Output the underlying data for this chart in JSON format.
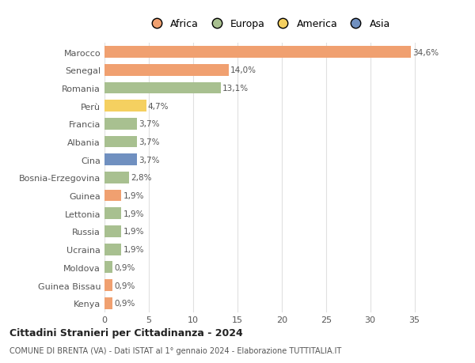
{
  "categories": [
    "Kenya",
    "Guinea Bissau",
    "Moldova",
    "Ucraina",
    "Russia",
    "Lettonia",
    "Guinea",
    "Bosnia-Erzegovina",
    "Cina",
    "Albania",
    "Francia",
    "Perù",
    "Romania",
    "Senegal",
    "Marocco"
  ],
  "values": [
    0.9,
    0.9,
    0.9,
    1.9,
    1.9,
    1.9,
    1.9,
    2.8,
    3.7,
    3.7,
    3.7,
    4.7,
    13.1,
    14.0,
    34.6
  ],
  "labels": [
    "0,9%",
    "0,9%",
    "0,9%",
    "1,9%",
    "1,9%",
    "1,9%",
    "1,9%",
    "2,8%",
    "3,7%",
    "3,7%",
    "3,7%",
    "4,7%",
    "13,1%",
    "14,0%",
    "34,6%"
  ],
  "colors": [
    "#F0A070",
    "#F0A070",
    "#A8C090",
    "#A8C090",
    "#A8C090",
    "#A8C090",
    "#F0A070",
    "#A8C090",
    "#7090C0",
    "#A8C090",
    "#A8C090",
    "#F5D060",
    "#A8C090",
    "#F0A070",
    "#F0A070"
  ],
  "legend_names": [
    "Africa",
    "Europa",
    "America",
    "Asia"
  ],
  "legend_colors": [
    "#F0A070",
    "#A8C090",
    "#F5D060",
    "#7090C0"
  ],
  "title": "Cittadini Stranieri per Cittadinanza - 2024",
  "subtitle": "COMUNE DI BRENTA (VA) - Dati ISTAT al 1° gennaio 2024 - Elaborazione TUTTITALIA.IT",
  "xlim": [
    0,
    37
  ],
  "xticks": [
    0,
    5,
    10,
    15,
    20,
    25,
    30,
    35
  ],
  "background_color": "#ffffff",
  "grid_color": "#e0e0e0"
}
